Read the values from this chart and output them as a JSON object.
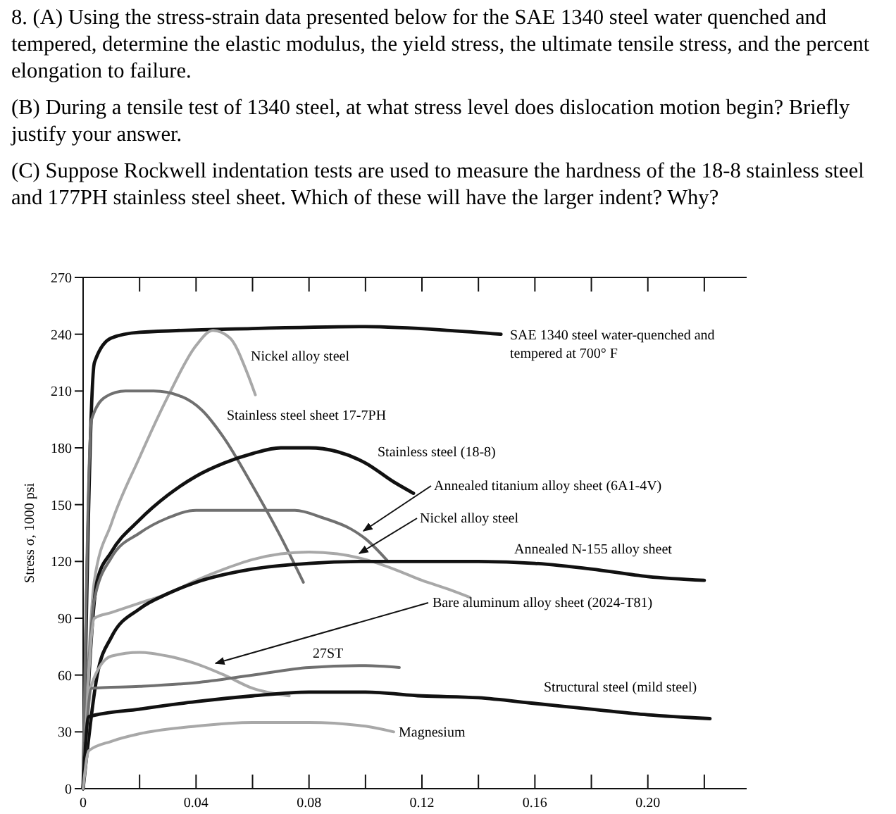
{
  "chart_data": {
    "type": "line",
    "title": "8. (A) Using the stress-strain data presented below for the SAE 1340 steel water quenched and tempered, determine the elastic modulus, the yield stress, the ultimate tensile stress, and the percent elongation to failure.",
    "annotations": [
      "(B) During a tensile test of 1340 steel, at what stress level does dislocation motion begin? Briefly justify your answer.",
      "(C) Suppose Rockwell indentation tests are used to measure the hardness of the 18-8 stainless steel and 177PH stainless steel sheet.  Which of these will have the larger indent?  Why?"
    ],
    "ylabel": "Stress σ, 1000 psi",
    "xlim": [
      0,
      0.235
    ],
    "xticks": [
      0,
      {
        "value": 0.02,
        "label": null
      },
      0.04,
      {
        "value": 0.06,
        "label": null
      },
      0.08,
      {
        "value": 0.1,
        "label": null
      },
      0.12,
      {
        "value": 0.14,
        "label": null
      },
      0.16,
      {
        "value": 0.18,
        "label": null
      },
      {
        "value": 0.2,
        "label": "0.20"
      },
      {
        "value": 0.22,
        "label": null
      }
    ],
    "ylim": [
      0,
      270
    ],
    "yticks": [
      0,
      30,
      60,
      90,
      120,
      150,
      180,
      210,
      240,
      270
    ],
    "grid": false,
    "marker": "none",
    "line_style": "solid",
    "series": [
      {
        "name": "SAE 1340 steel water-quenched and tempered at 700° F",
        "color": "#111111",
        "x": [
          0,
          0.004,
          0.01,
          0.02,
          0.06,
          0.1,
          0.13,
          0.148
        ],
        "values": [
          0,
          225,
          238,
          241,
          243,
          244,
          242,
          240
        ]
      },
      {
        "name": "Nickel alloy steel",
        "color": "#a8a8a8",
        "x": [
          0,
          0.004,
          0.01,
          0.02,
          0.03,
          0.04,
          0.046,
          0.052,
          0.058,
          0.061
        ],
        "values": [
          0,
          110,
          140,
          175,
          207,
          234,
          242,
          238,
          220,
          208
        ]
      },
      {
        "name": "Stainless steel sheet 17-7PH",
        "color": "#707070",
        "x": [
          0,
          0.003,
          0.008,
          0.015,
          0.025,
          0.035,
          0.042,
          0.05,
          0.06,
          0.07,
          0.078
        ],
        "values": [
          0,
          195,
          207,
          210,
          210,
          207,
          200,
          185,
          160,
          133,
          109
        ]
      },
      {
        "name": "Stainless steel (18-8)",
        "color": "#111111",
        "x": [
          0,
          0.005,
          0.01,
          0.02,
          0.03,
          0.04,
          0.05,
          0.06,
          0.07,
          0.08,
          0.09,
          0.1,
          0.11,
          0.117
        ],
        "values": [
          0,
          110,
          125,
          142,
          155,
          165,
          172,
          177,
          180,
          180,
          178,
          172,
          162,
          156
        ]
      },
      {
        "name": "Annealed titanium alloy sheet (6A1-4V)",
        "color": "#707070",
        "x": [
          0,
          0.004,
          0.01,
          0.02,
          0.03,
          0.04,
          0.06,
          0.075,
          0.085,
          0.095,
          0.1,
          0.108
        ],
        "values": [
          0,
          100,
          122,
          135,
          143,
          147,
          147,
          147,
          143,
          137,
          132,
          120
        ]
      },
      {
        "name": "Nickel alloy steel",
        "color": "#a8a8a8",
        "x": [
          0,
          0.004,
          0.01,
          0.02,
          0.03,
          0.04,
          0.05,
          0.06,
          0.07,
          0.08,
          0.09,
          0.1,
          0.11,
          0.12,
          0.13,
          0.137
        ],
        "values": [
          0,
          90,
          93,
          98,
          103,
          110,
          116,
          121,
          124,
          125,
          124,
          121,
          116,
          110,
          105,
          101
        ]
      },
      {
        "name": "Annealed N-155 alloy sheet",
        "color": "#111111",
        "x": [
          0,
          0.005,
          0.01,
          0.02,
          0.03,
          0.04,
          0.06,
          0.08,
          0.1,
          0.12,
          0.14,
          0.16,
          0.18,
          0.2,
          0.22
        ],
        "values": [
          0,
          60,
          80,
          95,
          103,
          109,
          116,
          119,
          120,
          120,
          120,
          119,
          116,
          112,
          110
        ]
      },
      {
        "name": "Bare aluminum alloy sheet (2024-T81)",
        "color": "#a8a8a8",
        "x": [
          0,
          0.003,
          0.01,
          0.02,
          0.03,
          0.04,
          0.05,
          0.06,
          0.073
        ],
        "values": [
          0,
          55,
          70,
          72,
          70,
          66,
          60,
          53,
          49
        ]
      },
      {
        "name": "27ST",
        "color": "#707070",
        "x": [
          0,
          0.003,
          0.02,
          0.04,
          0.06,
          0.08,
          0.1,
          0.112
        ],
        "values": [
          0,
          53,
          54,
          56,
          60,
          64,
          65,
          64
        ]
      },
      {
        "name": "Structural steel (mild steel)",
        "color": "#111111",
        "x": [
          0,
          0.002,
          0.02,
          0.04,
          0.06,
          0.08,
          0.1,
          0.12,
          0.14,
          0.16,
          0.18,
          0.2,
          0.222
        ],
        "values": [
          0,
          38,
          42,
          46,
          49,
          51,
          51,
          49,
          48,
          45,
          42,
          39,
          37
        ]
      },
      {
        "name": "Magnesium",
        "color": "#a8a8a8",
        "x": [
          0,
          0.002,
          0.01,
          0.02,
          0.04,
          0.06,
          0.08,
          0.1,
          0.11
        ],
        "values": [
          0,
          20,
          25,
          29,
          33,
          35,
          35,
          33,
          30
        ]
      }
    ]
  }
}
